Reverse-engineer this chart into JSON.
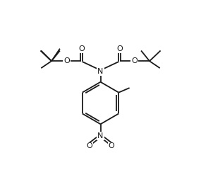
{
  "bg_color": "#ffffff",
  "line_color": "#1a1a1a",
  "line_width": 1.3,
  "font_size": 7.5,
  "figsize": [
    2.85,
    2.57
  ],
  "dpi": 100,
  "xlim": [
    0,
    10
  ],
  "ylim": [
    0,
    9
  ]
}
